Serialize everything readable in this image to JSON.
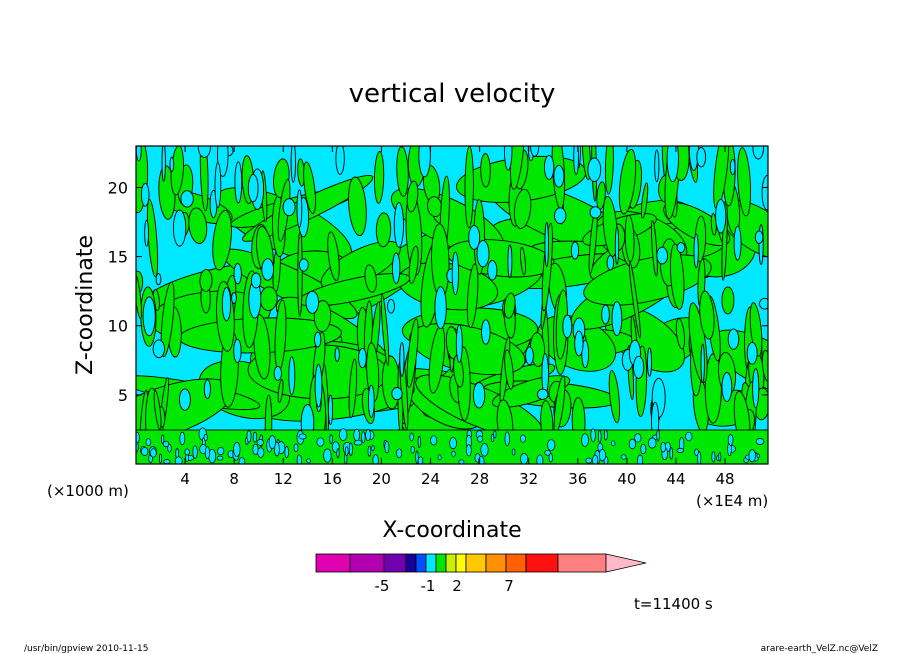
{
  "chart_data": {
    "type": "heatmap",
    "title": "vertical velocity",
    "xlabel": "X-coordinate",
    "ylabel": "Z-coordinate",
    "x_unit": "(×1E4 m)",
    "y_unit": "(×1000 m)",
    "xlim": [
      0,
      51.5
    ],
    "ylim": [
      0,
      23
    ],
    "x_ticks": [
      4,
      8,
      12,
      16,
      20,
      24,
      28,
      32,
      36,
      40,
      44,
      48
    ],
    "y_ticks": [
      5,
      10,
      15,
      20
    ],
    "field_colors": {
      "negative": "#00e8ff",
      "positive": "#00e800",
      "contour": "#000000"
    },
    "colorbar": {
      "colors": [
        "#e000b0",
        "#b000b0",
        "#7000b0",
        "#1800a0",
        "#0050ff",
        "#00e8ff",
        "#00e800",
        "#c8f000",
        "#ffff00",
        "#ffc800",
        "#ff9000",
        "#ff6000",
        "#ff1010",
        "#ff8080"
      ],
      "extension_color": "#ffb8c8",
      "labels": [
        "-5",
        "-1",
        "2",
        "7"
      ]
    },
    "time_label": "t=11400 s"
  },
  "footer": {
    "left": "/usr/bin/gpview  2010-11-15",
    "right": "arare-earth_VelZ.nc@VelZ"
  }
}
